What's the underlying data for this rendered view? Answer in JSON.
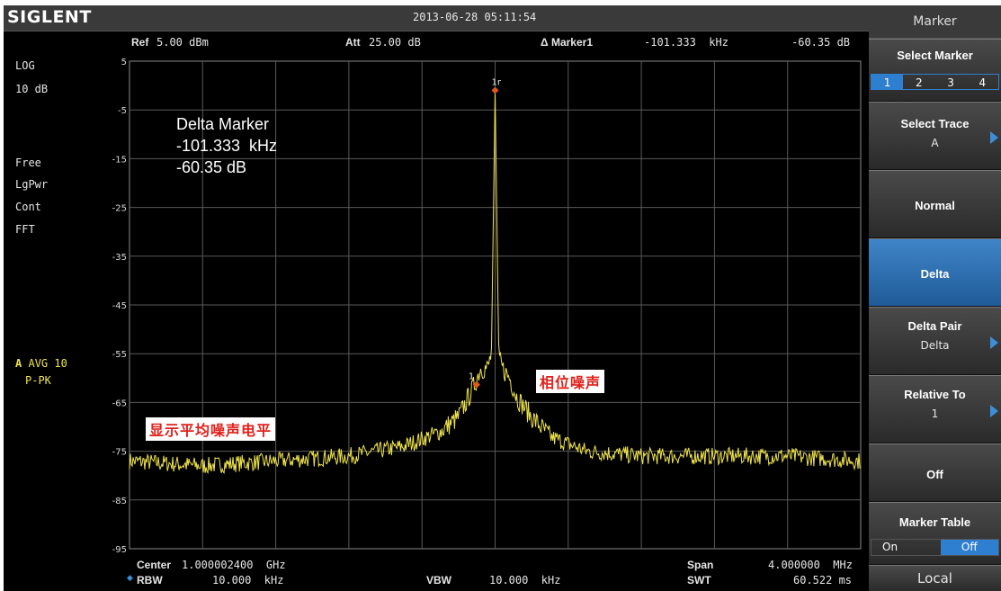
{
  "brand": "SIGLENT",
  "datetime": "2013-06-28  05:11:54",
  "header": {
    "ref_label": "Ref",
    "ref_value": "5.00 dBm",
    "att_label": "Att",
    "att_value": "25.00 dB",
    "marker_label": "Δ Marker1",
    "marker_freq": "-101.333  kHz",
    "marker_level": "-60.35 dB"
  },
  "left_panel": {
    "scale_type": "LOG",
    "scale_div": "10 dB",
    "trig": "Free",
    "detector": "LgPwr",
    "sweep": "Cont",
    "mode": "FFT",
    "trace_letter": "A",
    "trace_avg": "AVG 10",
    "trace_det": "P-PK"
  },
  "y_ticks": [
    "5",
    "-5",
    "-15",
    "-25",
    "-35",
    "-45",
    "-55",
    "-65",
    "-75",
    "-85",
    "-95"
  ],
  "delta_box": {
    "title": "Delta Marker",
    "freq": "-101.333  kHz",
    "level": "-60.35 dB"
  },
  "marker_tags": {
    "ref": "1r",
    "delta": "1"
  },
  "annotations": {
    "phase_noise": "相位噪声",
    "noise_floor": "显示平均噪声电平"
  },
  "footer": {
    "center_label": "Center",
    "center_value": "1.000002400  GHz",
    "rbw_label": "RBW",
    "rbw_value": "10.000  kHz",
    "vbw_label": "VBW",
    "vbw_value": "10.000  kHz",
    "span_label": "Span",
    "span_value": "4.000000  MHz",
    "swt_label": "SWT",
    "swt_value": "60.522 ms"
  },
  "softkeys": {
    "menu_title": "Marker",
    "select_marker": {
      "label": "Select Marker",
      "options": [
        "1",
        "2",
        "3",
        "4"
      ],
      "selected": "1"
    },
    "select_trace": {
      "label": "Select Trace",
      "value": "A"
    },
    "normal": {
      "label": "Normal"
    },
    "delta": {
      "label": "Delta"
    },
    "delta_pair": {
      "label": "Delta Pair",
      "value": "Delta"
    },
    "relative_to": {
      "label": "Relative To",
      "value": "1"
    },
    "off": {
      "label": "Off"
    },
    "marker_table": {
      "label": "Marker Table",
      "on": "On",
      "off": "Off",
      "selected": "Off"
    },
    "local": "Local"
  },
  "colors": {
    "trace": "#f0e54a",
    "grid": "#5a5a5a",
    "accent": "#2f7fd0",
    "marker": "#e0581a",
    "annotation_text": "#e0201a"
  },
  "chart_data": {
    "type": "line",
    "title": "",
    "xlabel": "",
    "ylabel": "",
    "x_unit": "MHz offset from center",
    "xlim": [
      -2.0,
      2.0
    ],
    "ylim": [
      -95,
      5
    ],
    "grid": true,
    "series": [
      {
        "x": [
          -2.0,
          -1.6,
          -1.2,
          -0.8,
          -0.5,
          -0.3,
          -0.2,
          -0.12,
          -0.08,
          -0.04,
          -0.02,
          0.0,
          0.02,
          0.04,
          0.08,
          0.12,
          0.2,
          0.3,
          0.5,
          0.8,
          1.2,
          1.6,
          2.0
        ],
        "y": [
          -77,
          -78,
          -77,
          -76,
          -74,
          -71,
          -68,
          -62,
          -58,
          -58,
          -55,
          -1,
          -56,
          -58,
          -60,
          -64,
          -68,
          -72,
          -75,
          -76,
          -76,
          -76,
          -77
        ]
      }
    ],
    "markers": [
      {
        "label": "1r",
        "x": 0.0,
        "y": -1
      },
      {
        "label": "1",
        "x": -0.101333,
        "y": -61.35
      }
    ]
  }
}
